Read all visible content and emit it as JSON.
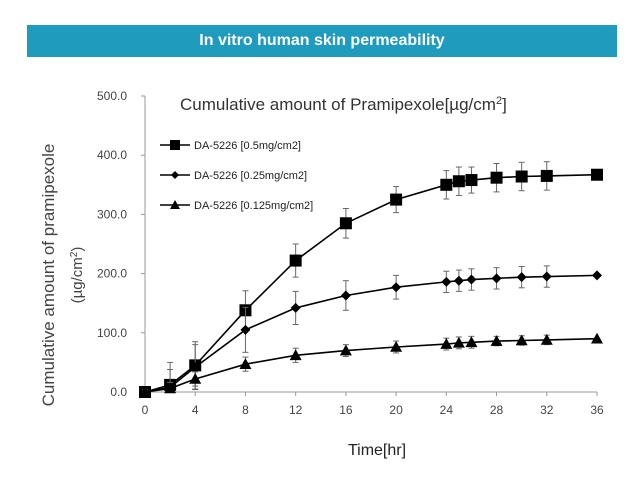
{
  "header": {
    "banner_title": "In vitro human skin permeability",
    "banner_color": "#1f9bbd"
  },
  "chart_data": {
    "type": "line",
    "title": "Cumulative amount of Pramipexole[µg/cm2]",
    "xlabel": "Time[hr]",
    "ylabel_line1": "Cumulative amount of pramipexole",
    "ylabel_line2": "(µg/cm2)",
    "xlim": [
      0,
      36
    ],
    "ylim": [
      0,
      500
    ],
    "x_ticks": [
      "0",
      "4",
      "8",
      "12",
      "16",
      "20",
      "24",
      "28",
      "32",
      "36"
    ],
    "y_ticks": [
      "0.0",
      "100.0",
      "200.0",
      "300.0",
      "400.0",
      "500.0"
    ],
    "grid": false,
    "legend_position": "top-left",
    "series": [
      {
        "name": "DA-5226 [0.5mg/cm2]",
        "marker": "square",
        "x": [
          0,
          2,
          4,
          8,
          12,
          16,
          20,
          24,
          25,
          26,
          28,
          30,
          32,
          36
        ],
        "y": [
          0,
          12,
          45,
          138,
          222,
          285,
          325,
          350,
          356,
          358,
          362,
          364,
          365,
          367
        ],
        "err": [
          5,
          38,
          40,
          33,
          28,
          25,
          22,
          24,
          24,
          22,
          24,
          24,
          24,
          0
        ]
      },
      {
        "name": "DA-5226 [0.25mg/cm2]",
        "marker": "diamond",
        "x": [
          0,
          2,
          4,
          8,
          12,
          16,
          20,
          24,
          25,
          26,
          28,
          30,
          32,
          36
        ],
        "y": [
          0,
          8,
          42,
          105,
          142,
          163,
          177,
          186,
          188,
          190,
          192,
          194,
          195,
          197
        ],
        "err": [
          4,
          30,
          38,
          38,
          28,
          25,
          20,
          18,
          18,
          18,
          18,
          18,
          18,
          0
        ]
      },
      {
        "name": "DA-5226 [0.125mg/cm2]",
        "marker": "triangle",
        "x": [
          0,
          2,
          4,
          8,
          12,
          16,
          20,
          24,
          25,
          26,
          28,
          30,
          32,
          36
        ],
        "y": [
          0,
          6,
          22,
          47,
          62,
          70,
          76,
          81,
          83,
          84,
          86,
          87,
          88,
          90
        ],
        "err": [
          3,
          10,
          12,
          12,
          12,
          10,
          10,
          10,
          10,
          10,
          8,
          8,
          8,
          0
        ]
      }
    ]
  }
}
